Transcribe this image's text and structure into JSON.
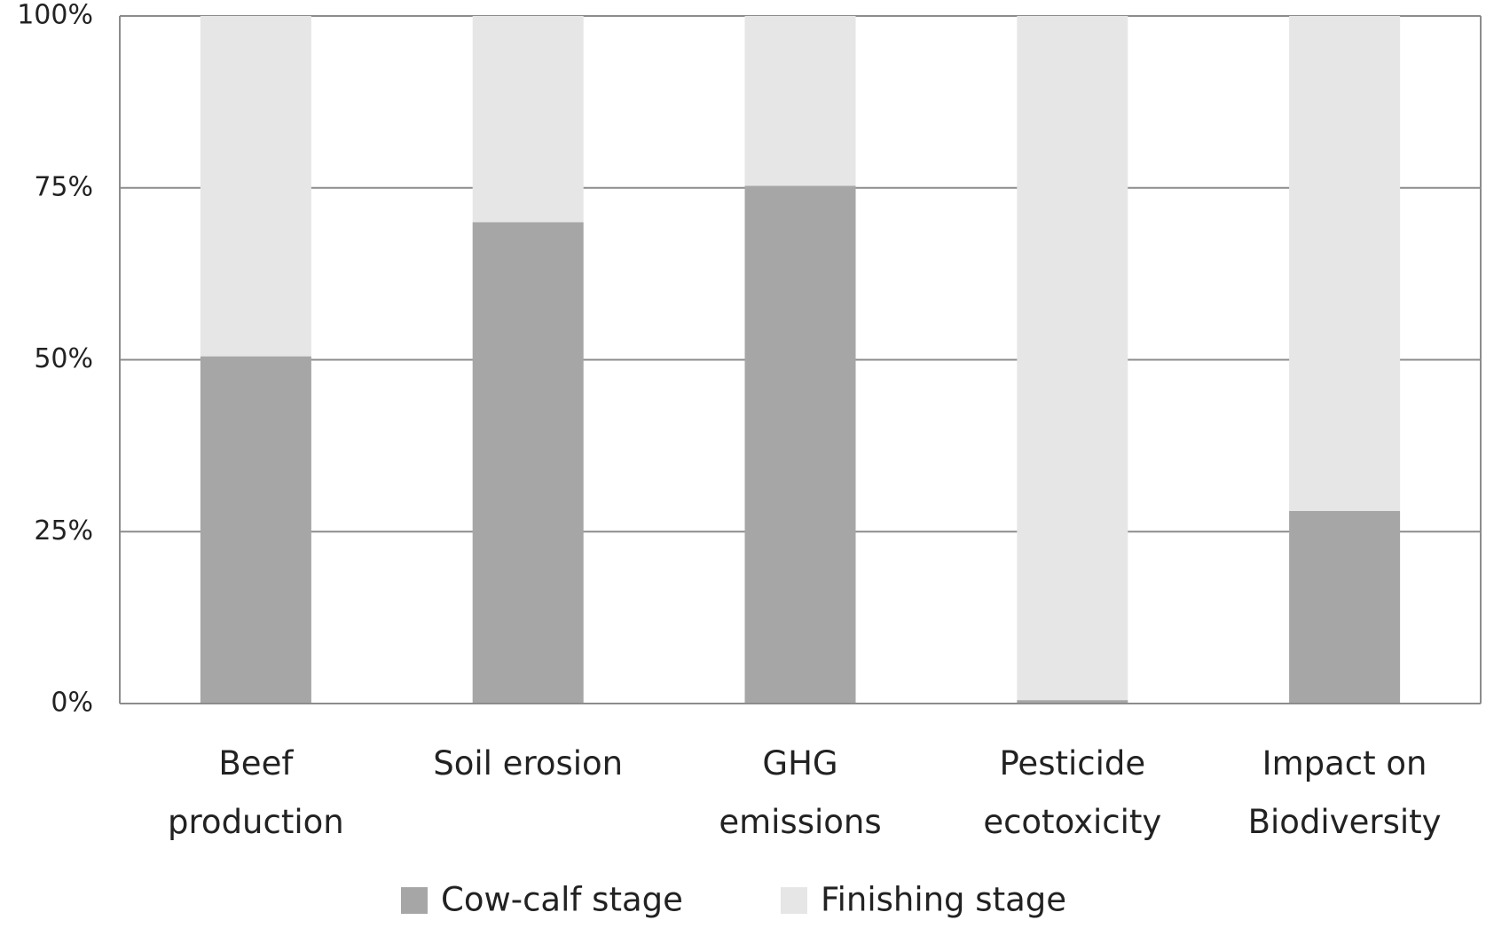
{
  "chart_data": {
    "type": "stacked-bar",
    "categories": [
      "Beef production",
      "Soil erosion",
      "GHG emissions",
      "Pesticide ecotoxicity",
      "Impact on Biodiversity"
    ],
    "series": [
      {
        "name": "Cow-calf stage",
        "color": "#a6a6a6",
        "values": [
          50.5,
          70,
          75.3,
          0.5,
          28
        ]
      },
      {
        "name": "Finishing stage",
        "color": "#e6e6e6",
        "values": [
          49.5,
          30,
          24.7,
          99.5,
          72
        ]
      }
    ],
    "ylim": [
      0,
      100
    ],
    "yticks": [
      {
        "value": 0,
        "label": "0%"
      },
      {
        "value": 25,
        "label": "25%"
      },
      {
        "value": 50,
        "label": "50%"
      },
      {
        "value": 75,
        "label": "75%"
      },
      {
        "value": 100,
        "label": "100%"
      }
    ],
    "grid": true
  }
}
